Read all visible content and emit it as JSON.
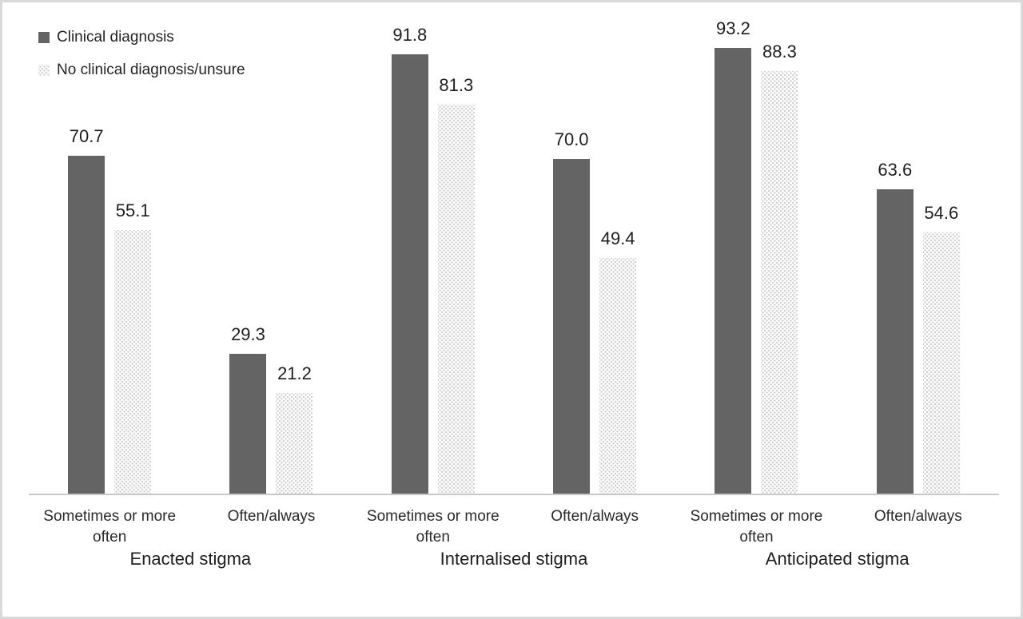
{
  "chart_data": {
    "type": "bar",
    "title": "",
    "ylim": [
      0,
      100
    ],
    "grid": false,
    "legend_position": "top-left",
    "axis_baseline_color": "#c9c9c9",
    "series": [
      {
        "name": "Clinical diagnosis",
        "style": "solid",
        "color": "#646464"
      },
      {
        "name": "No clinical diagnosis/unsure",
        "style": "dotted",
        "color": "#cfcfcf"
      }
    ],
    "groups": [
      {
        "label": "Enacted stigma",
        "categories": [
          {
            "label": "Sometimes or more often",
            "values": [
              70.7,
              55.1
            ]
          },
          {
            "label": "Often/always",
            "values": [
              29.3,
              21.2
            ]
          }
        ]
      },
      {
        "label": "Internalised stigma",
        "categories": [
          {
            "label": "Sometimes or more often",
            "values": [
              91.8,
              81.3
            ]
          },
          {
            "label": "Often/always",
            "values": [
              70.0,
              49.4
            ]
          }
        ]
      },
      {
        "label": "Anticipated stigma",
        "categories": [
          {
            "label": "Sometimes or more often",
            "values": [
              93.2,
              88.3
            ]
          },
          {
            "label": "Often/always",
            "values": [
              63.6,
              54.6
            ]
          }
        ]
      }
    ],
    "value_label_decimals": 1
  }
}
